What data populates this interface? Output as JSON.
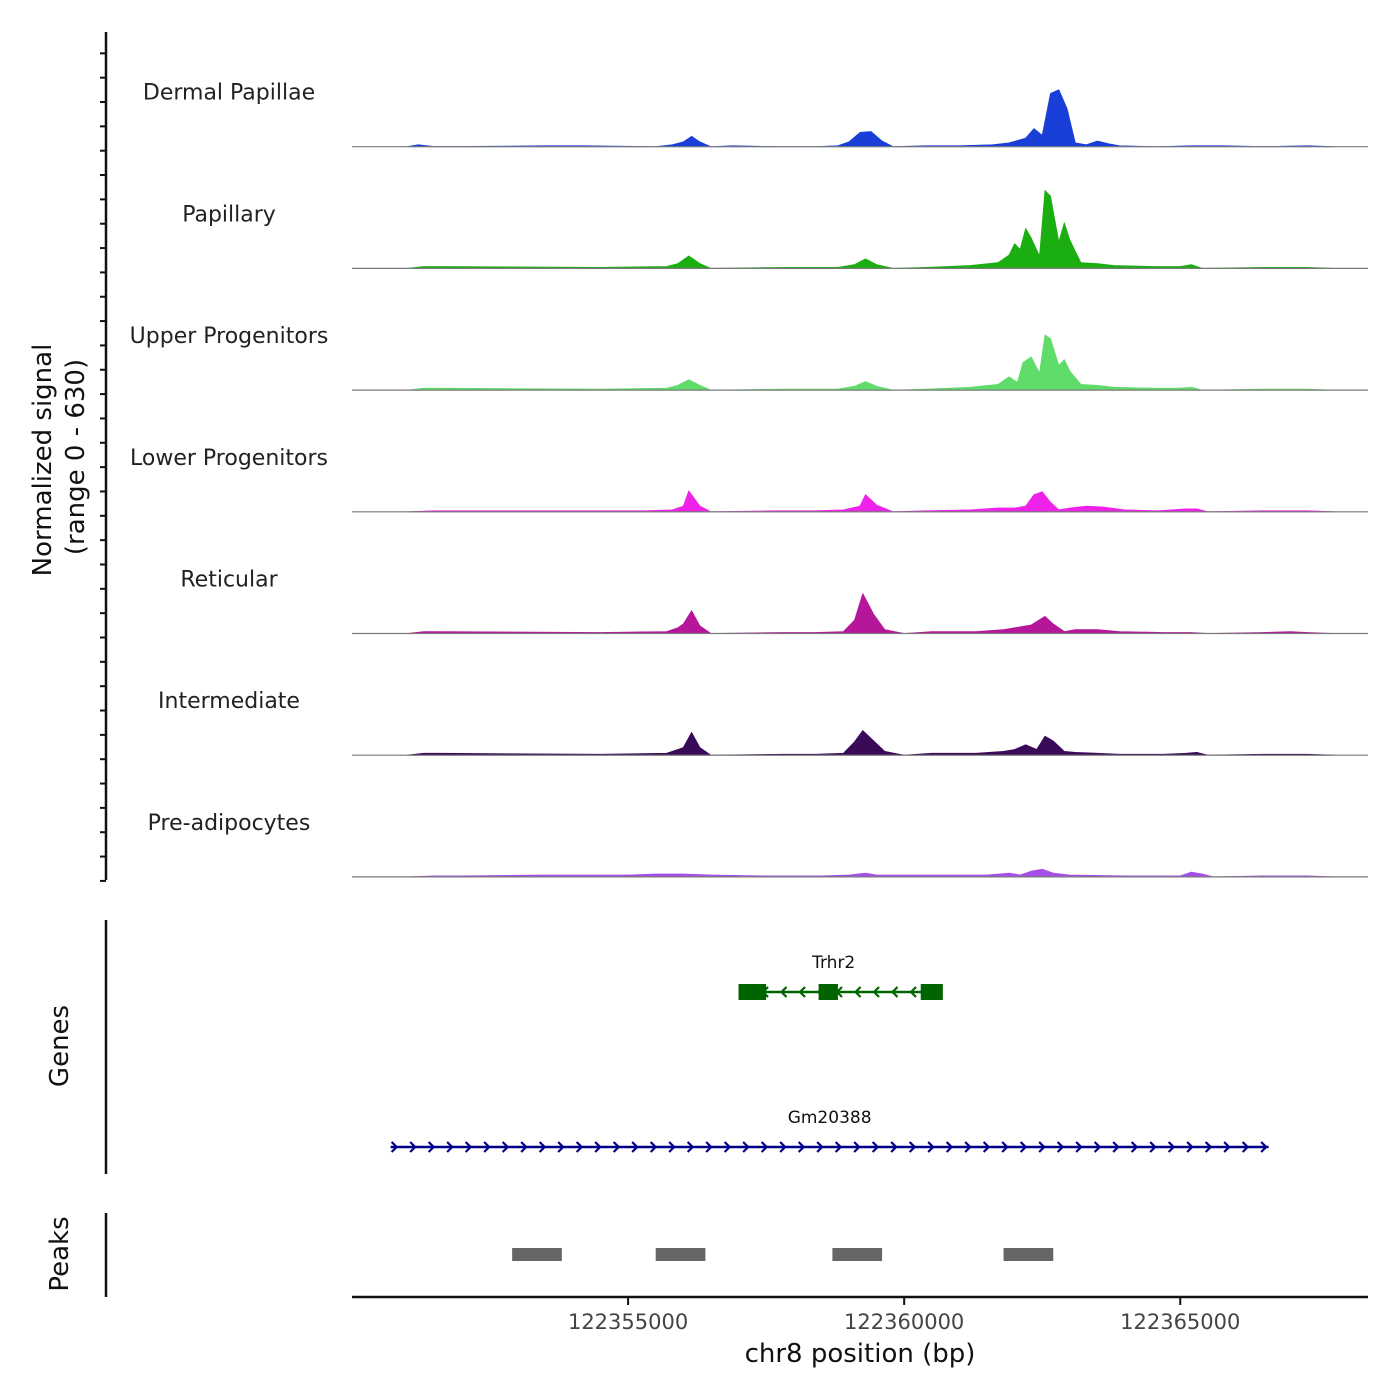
{
  "chart_data": {
    "type": "area",
    "title": "",
    "xlabel": "chr8 position (bp)",
    "ylabel": "Normalized signal",
    "ylabel_range": "(range 0 - 630)",
    "xlim": [
      122350000,
      122368400
    ],
    "ylim": [
      0,
      630
    ],
    "xticks": [
      122355000,
      122360000,
      122365000
    ],
    "xtick_labels": [
      "122355000",
      "122360000",
      "122365000"
    ],
    "genes_label": "Genes",
    "peaks_label": "Peaks",
    "tracks": [
      {
        "name": "Dermal Papillae",
        "color": "#1a3fd8",
        "x": [
          122351000,
          122351200,
          122351500,
          122353500,
          122354200,
          122355500,
          122355800,
          122356000,
          122356150,
          122356300,
          122356500,
          122356900,
          122357700,
          122358400,
          122358800,
          122359000,
          122359200,
          122359400,
          122359600,
          122359800,
          122360400,
          122361000,
          122361600,
          122361900,
          122362200,
          122362350,
          122362500,
          122362650,
          122362800,
          122362950,
          122363100,
          122363300,
          122363500,
          122363700,
          122363900,
          122364600,
          122365200,
          122365800,
          122366500,
          122367300,
          122367800
        ],
        "y": [
          0,
          20,
          0,
          10,
          10,
          0,
          20,
          50,
          110,
          50,
          0,
          10,
          0,
          0,
          10,
          50,
          150,
          160,
          60,
          0,
          10,
          10,
          20,
          40,
          90,
          190,
          120,
          560,
          600,
          400,
          40,
          20,
          60,
          30,
          10,
          0,
          10,
          10,
          0,
          10,
          0
        ]
      },
      {
        "name": "Papillary",
        "color": "#1aae11",
        "x": [
          122351000,
          122351300,
          122351600,
          122354500,
          122355700,
          122355900,
          122356100,
          122356300,
          122356500,
          122357800,
          122358400,
          122358800,
          122359100,
          122359300,
          122359500,
          122359800,
          122360400,
          122361200,
          122361700,
          122361900,
          122362000,
          122362100,
          122362200,
          122362300,
          122362450,
          122362550,
          122362650,
          122362800,
          122362900,
          122363000,
          122363200,
          122363500,
          122363800,
          122364500,
          122365000,
          122365200,
          122365400,
          122366500,
          122367300,
          122367800
        ],
        "y": [
          0,
          20,
          20,
          10,
          20,
          50,
          130,
          50,
          0,
          10,
          10,
          10,
          40,
          100,
          40,
          0,
          10,
          30,
          60,
          140,
          260,
          200,
          420,
          320,
          130,
          820,
          760,
          280,
          480,
          300,
          60,
          50,
          30,
          20,
          20,
          40,
          0,
          10,
          10,
          0
        ]
      },
      {
        "name": "Upper Progenitors",
        "color": "#5fdc6a",
        "x": [
          122351000,
          122351300,
          122351600,
          122354500,
          122355700,
          122355900,
          122356100,
          122356300,
          122356500,
          122357800,
          122358400,
          122358800,
          122359100,
          122359300,
          122359500,
          122359800,
          122360400,
          122361200,
          122361700,
          122361900,
          122362050,
          122362150,
          122362300,
          122362450,
          122362550,
          122362650,
          122362800,
          122362900,
          122363000,
          122363200,
          122363500,
          122363800,
          122364500,
          122365000,
          122365200,
          122365400,
          122366500,
          122367300,
          122367800
        ],
        "y": [
          0,
          20,
          20,
          10,
          20,
          50,
          110,
          50,
          0,
          10,
          10,
          10,
          40,
          90,
          40,
          0,
          10,
          30,
          60,
          140,
          80,
          290,
          350,
          180,
          580,
          540,
          260,
          320,
          200,
          60,
          50,
          30,
          20,
          20,
          30,
          0,
          10,
          10,
          0
        ]
      },
      {
        "name": "Lower Progenitors",
        "color": "#ee22e8",
        "x": [
          122351000,
          122351500,
          122352000,
          122355300,
          122355800,
          122356000,
          122356100,
          122356300,
          122356500,
          122357700,
          122358400,
          122358900,
          122359200,
          122359300,
          122359500,
          122359800,
          122360400,
          122361200,
          122361700,
          122362000,
          122362200,
          122362350,
          122362500,
          122362650,
          122362800,
          122363000,
          122363300,
          122363600,
          122364000,
          122364600,
          122365100,
          122365300,
          122365500,
          122366500,
          122367300,
          122367800
        ],
        "y": [
          0,
          10,
          10,
          10,
          20,
          60,
          220,
          60,
          0,
          10,
          10,
          20,
          60,
          180,
          70,
          0,
          10,
          20,
          40,
          40,
          60,
          180,
          210,
          100,
          20,
          40,
          60,
          50,
          20,
          10,
          30,
          30,
          0,
          10,
          10,
          0
        ]
      },
      {
        "name": "Reticular",
        "color": "#b5169a",
        "x": [
          122351000,
          122351300,
          122351600,
          122354500,
          122355700,
          122355900,
          122356000,
          122356150,
          122356300,
          122356500,
          122357800,
          122358400,
          122358900,
          122359100,
          122359250,
          122359450,
          122359650,
          122360000,
          122360500,
          122361300,
          122361800,
          122362000,
          122362300,
          122362550,
          122362700,
          122362900,
          122363100,
          122363500,
          122363900,
          122364700,
          122365200,
          122365500,
          122366500,
          122367000,
          122367300,
          122367800
        ],
        "y": [
          0,
          20,
          20,
          10,
          20,
          60,
          100,
          240,
          80,
          0,
          10,
          10,
          20,
          140,
          420,
          200,
          40,
          0,
          20,
          20,
          40,
          60,
          90,
          180,
          100,
          20,
          40,
          40,
          20,
          10,
          10,
          0,
          10,
          20,
          10,
          0
        ]
      },
      {
        "name": "Intermediate",
        "color": "#3a0a58",
        "x": [
          122351000,
          122351300,
          122351600,
          122354500,
          122355700,
          122355900,
          122356000,
          122356150,
          122356300,
          122356500,
          122357800,
          122358400,
          122358900,
          122359100,
          122359250,
          122359450,
          122359650,
          122360000,
          122360500,
          122361300,
          122361800,
          122362000,
          122362200,
          122362400,
          122362550,
          122362700,
          122362900,
          122363100,
          122363500,
          122363900,
          122364700,
          122365100,
          122365300,
          122365500,
          122366500,
          122367300,
          122367800
        ],
        "y": [
          0,
          20,
          20,
          10,
          20,
          60,
          80,
          240,
          80,
          0,
          10,
          10,
          20,
          140,
          260,
          150,
          40,
          0,
          20,
          20,
          40,
          60,
          110,
          60,
          200,
          150,
          40,
          30,
          20,
          10,
          10,
          20,
          30,
          0,
          10,
          10,
          0
        ]
      },
      {
        "name": "Pre-adipocytes",
        "color": "#a64ee8",
        "x": [
          122351000,
          122351500,
          122352000,
          122353500,
          122354300,
          122355000,
          122355500,
          122356000,
          122356500,
          122357500,
          122358500,
          122359000,
          122359300,
          122359500,
          122360000,
          122360500,
          122361500,
          122361900,
          122362100,
          122362300,
          122362500,
          122362700,
          122363000,
          122364000,
          122365000,
          122365200,
          122365400,
          122365600,
          122366500,
          122367300,
          122367800
        ],
        "y": [
          0,
          10,
          10,
          20,
          20,
          20,
          30,
          30,
          20,
          10,
          10,
          20,
          40,
          20,
          20,
          20,
          20,
          40,
          20,
          60,
          80,
          40,
          20,
          10,
          10,
          50,
          30,
          0,
          10,
          10,
          0
        ]
      }
    ],
    "genes": [
      {
        "name": "Trhr2",
        "color": "#006400",
        "strand": "-",
        "start": 122357000,
        "end": 122360700,
        "exons": [
          [
            122357000,
            122357500
          ],
          [
            122358450,
            122358800
          ],
          [
            122360300,
            122360700
          ]
        ]
      },
      {
        "name": "Gm20388",
        "color": "#00008b",
        "strand": "+",
        "start": 122350700,
        "end": 122366600,
        "exons": []
      }
    ],
    "peaks": [
      {
        "start": 122352900,
        "end": 122353800
      },
      {
        "start": 122355500,
        "end": 122356400
      },
      {
        "start": 122358700,
        "end": 122359600
      },
      {
        "start": 122361800,
        "end": 122362700
      }
    ]
  }
}
